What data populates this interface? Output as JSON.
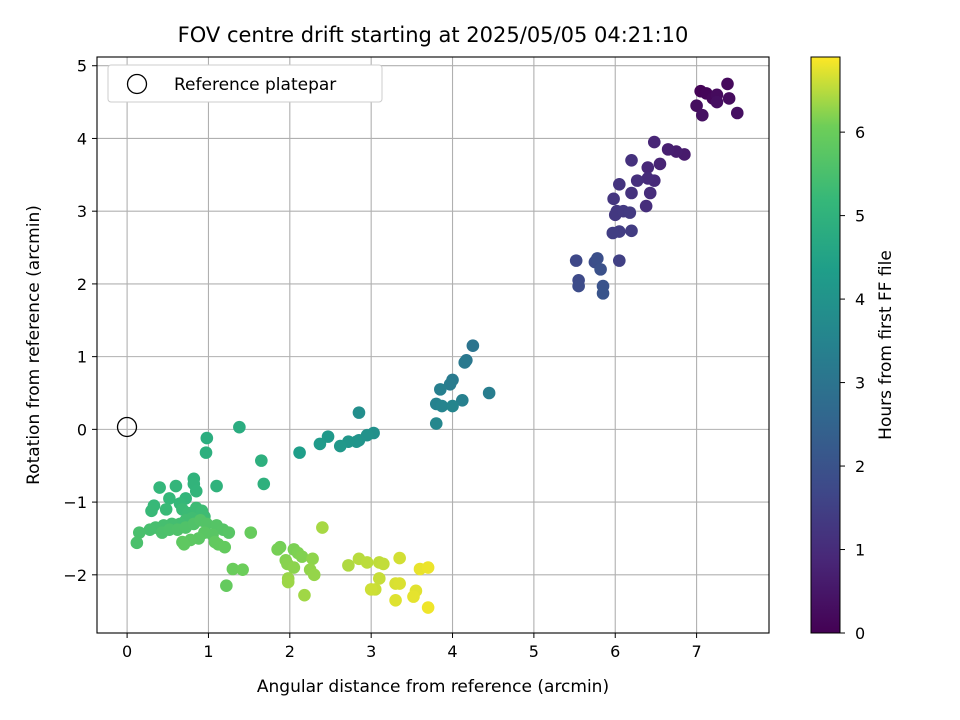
{
  "chart_data": {
    "type": "scatter",
    "title": "FOV centre drift starting at 2025/05/05 04:21:10",
    "xlabel": "Angular distance from reference (arcmin)",
    "ylabel": "Rotation from reference (arcmin)",
    "xlim": [
      -0.37,
      7.89
    ],
    "ylim": [
      -2.8,
      5.12
    ],
    "xticks": [
      "0",
      "1",
      "2",
      "3",
      "4",
      "5",
      "6",
      "7"
    ],
    "yticks": [
      "−2",
      "−1",
      "0",
      "1",
      "2",
      "3",
      "4",
      "5"
    ],
    "grid": true,
    "legend": {
      "placement": "top-left",
      "entries": [
        "Reference platepar"
      ]
    },
    "reference_point": {
      "x": 0,
      "y": 0
    },
    "colorbar": {
      "label": "Hours from first FF file",
      "colormap": "viridis",
      "range": [
        0,
        6.9
      ],
      "ticks": [
        "0",
        "1",
        "2",
        "3",
        "4",
        "5",
        "6"
      ]
    },
    "points": [
      [
        7.05,
        4.65,
        0.05
      ],
      [
        7.12,
        4.62,
        0.1
      ],
      [
        7.2,
        4.55,
        0.15
      ],
      [
        7.38,
        4.75,
        0.2
      ],
      [
        7.25,
        4.6,
        0.22
      ],
      [
        7.4,
        4.55,
        0.25
      ],
      [
        7.0,
        4.45,
        0.28
      ],
      [
        7.25,
        4.5,
        0.3
      ],
      [
        7.5,
        4.35,
        0.33
      ],
      [
        7.07,
        4.32,
        0.36
      ],
      [
        6.85,
        3.78,
        0.6
      ],
      [
        6.75,
        3.82,
        0.65
      ],
      [
        6.65,
        3.85,
        0.7
      ],
      [
        6.55,
        3.65,
        0.8
      ],
      [
        6.48,
        3.95,
        0.85
      ],
      [
        6.4,
        3.6,
        0.9
      ],
      [
        6.48,
        3.42,
        0.95
      ],
      [
        6.4,
        3.45,
        1.0
      ],
      [
        6.43,
        3.25,
        1.02
      ],
      [
        6.38,
        3.07,
        1.05
      ],
      [
        6.27,
        3.42,
        1.1
      ],
      [
        6.2,
        3.7,
        1.12
      ],
      [
        6.2,
        3.25,
        1.15
      ],
      [
        6.05,
        3.37,
        1.2
      ],
      [
        5.98,
        3.17,
        1.25
      ],
      [
        6.02,
        3.0,
        1.28
      ],
      [
        6.0,
        2.95,
        1.3
      ],
      [
        6.1,
        3.0,
        1.32
      ],
      [
        6.18,
        2.98,
        1.35
      ],
      [
        6.2,
        2.73,
        1.4
      ],
      [
        6.05,
        2.72,
        1.42
      ],
      [
        5.97,
        2.7,
        1.45
      ],
      [
        6.05,
        2.32,
        1.5
      ],
      [
        5.52,
        2.32,
        1.7
      ],
      [
        5.55,
        2.05,
        1.75
      ],
      [
        5.55,
        1.97,
        1.8
      ],
      [
        5.75,
        2.3,
        1.85
      ],
      [
        5.78,
        2.35,
        1.9
      ],
      [
        5.82,
        2.2,
        1.95
      ],
      [
        5.85,
        1.97,
        2.0
      ],
      [
        5.85,
        1.87,
        2.05
      ],
      [
        4.25,
        1.15,
        3.0
      ],
      [
        4.17,
        0.95,
        3.1
      ],
      [
        4.15,
        0.92,
        3.15
      ],
      [
        4.0,
        0.68,
        3.2
      ],
      [
        3.97,
        0.62,
        3.25
      ],
      [
        4.45,
        0.5,
        3.3
      ],
      [
        3.85,
        0.55,
        3.35
      ],
      [
        4.12,
        0.4,
        3.4
      ],
      [
        3.8,
        0.35,
        3.45
      ],
      [
        3.87,
        0.32,
        3.5
      ],
      [
        4.0,
        0.32,
        3.55
      ],
      [
        3.8,
        0.08,
        3.6
      ],
      [
        2.85,
        0.23,
        3.85
      ],
      [
        3.03,
        -0.05,
        3.9
      ],
      [
        2.95,
        -0.08,
        3.95
      ],
      [
        2.85,
        -0.15,
        4.0
      ],
      [
        2.82,
        -0.17,
        4.05
      ],
      [
        2.72,
        -0.17,
        4.1
      ],
      [
        2.62,
        -0.23,
        4.15
      ],
      [
        2.47,
        -0.1,
        4.2
      ],
      [
        2.37,
        -0.2,
        4.25
      ],
      [
        2.12,
        -0.32,
        4.35
      ],
      [
        1.38,
        0.03,
        4.8
      ],
      [
        0.98,
        -0.12,
        4.85
      ],
      [
        0.97,
        -0.32,
        4.9
      ],
      [
        1.65,
        -0.43,
        4.92
      ],
      [
        1.68,
        -0.75,
        4.95
      ],
      [
        1.1,
        -0.78,
        5.0
      ],
      [
        0.82,
        -0.68,
        5.02
      ],
      [
        0.82,
        -0.75,
        5.05
      ],
      [
        0.85,
        -0.85,
        5.07
      ],
      [
        0.72,
        -0.95,
        5.1
      ],
      [
        0.6,
        -0.78,
        5.12
      ],
      [
        0.4,
        -0.8,
        5.14
      ],
      [
        0.52,
        -0.95,
        5.16
      ],
      [
        0.65,
        -1.02,
        5.18
      ],
      [
        0.33,
        -1.05,
        5.2
      ],
      [
        0.3,
        -1.12,
        5.22
      ],
      [
        0.48,
        -1.1,
        5.24
      ],
      [
        0.68,
        -1.1,
        5.26
      ],
      [
        0.75,
        -1.15,
        5.28
      ],
      [
        0.85,
        -1.08,
        5.3
      ],
      [
        0.92,
        -1.12,
        5.32
      ],
      [
        0.95,
        -1.2,
        5.34
      ],
      [
        0.8,
        -1.22,
        5.36
      ],
      [
        0.72,
        -1.25,
        5.38
      ],
      [
        0.65,
        -1.3,
        5.4
      ],
      [
        0.55,
        -1.3,
        5.42
      ],
      [
        0.45,
        -1.32,
        5.44
      ],
      [
        0.35,
        -1.35,
        5.46
      ],
      [
        0.28,
        -1.38,
        5.48
      ],
      [
        0.15,
        -1.42,
        5.5
      ],
      [
        0.12,
        -1.56,
        5.52
      ],
      [
        0.43,
        -1.42,
        5.54
      ],
      [
        0.52,
        -1.38,
        5.56
      ],
      [
        0.62,
        -1.38,
        5.58
      ],
      [
        0.72,
        -1.35,
        5.6
      ],
      [
        0.82,
        -1.3,
        5.62
      ],
      [
        0.9,
        -1.25,
        5.64
      ],
      [
        0.98,
        -1.3,
        5.66
      ],
      [
        1.1,
        -1.32,
        5.68
      ],
      [
        1.18,
        -1.38,
        5.7
      ],
      [
        1.25,
        -1.42,
        5.72
      ],
      [
        1.05,
        -1.45,
        5.74
      ],
      [
        0.95,
        -1.42,
        5.76
      ],
      [
        0.88,
        -1.5,
        5.78
      ],
      [
        0.78,
        -1.52,
        5.8
      ],
      [
        0.68,
        -1.55,
        5.82
      ],
      [
        0.7,
        -1.58,
        5.84
      ],
      [
        1.08,
        -1.55,
        5.86
      ],
      [
        1.12,
        -1.58,
        5.88
      ],
      [
        1.2,
        -1.62,
        5.9
      ],
      [
        1.22,
        -2.15,
        5.92
      ],
      [
        1.52,
        -1.42,
        5.95
      ],
      [
        1.3,
        -1.92,
        6.0
      ],
      [
        1.42,
        -1.93,
        6.02
      ],
      [
        1.88,
        -1.62,
        6.1
      ],
      [
        1.85,
        -1.65,
        6.12
      ],
      [
        2.05,
        -1.65,
        6.14
      ],
      [
        2.1,
        -1.7,
        6.16
      ],
      [
        2.15,
        -1.75,
        6.18
      ],
      [
        1.95,
        -1.8,
        6.2
      ],
      [
        1.97,
        -1.85,
        6.22
      ],
      [
        2.05,
        -1.9,
        6.24
      ],
      [
        2.28,
        -1.78,
        6.26
      ],
      [
        2.25,
        -1.93,
        6.28
      ],
      [
        2.3,
        -2.0,
        6.3
      ],
      [
        1.98,
        -2.05,
        6.32
      ],
      [
        1.98,
        -2.1,
        6.34
      ],
      [
        2.18,
        -2.28,
        6.36
      ],
      [
        2.4,
        -1.35,
        6.4
      ],
      [
        2.72,
        -1.87,
        6.45
      ],
      [
        2.85,
        -1.78,
        6.5
      ],
      [
        2.95,
        -1.83,
        6.52
      ],
      [
        3.1,
        -1.83,
        6.54
      ],
      [
        3.15,
        -1.85,
        6.56
      ],
      [
        3.1,
        -2.05,
        6.58
      ],
      [
        3.05,
        -2.2,
        6.6
      ],
      [
        3.0,
        -2.2,
        6.62
      ],
      [
        3.35,
        -1.77,
        6.65
      ],
      [
        3.3,
        -2.12,
        6.68
      ],
      [
        3.35,
        -2.12,
        6.7
      ],
      [
        3.3,
        -2.35,
        6.72
      ],
      [
        3.55,
        -2.22,
        6.74
      ],
      [
        3.52,
        -2.3,
        6.76
      ],
      [
        3.6,
        -1.92,
        6.78
      ],
      [
        3.7,
        -1.9,
        6.8
      ],
      [
        3.7,
        -2.45,
        6.82
      ]
    ]
  }
}
